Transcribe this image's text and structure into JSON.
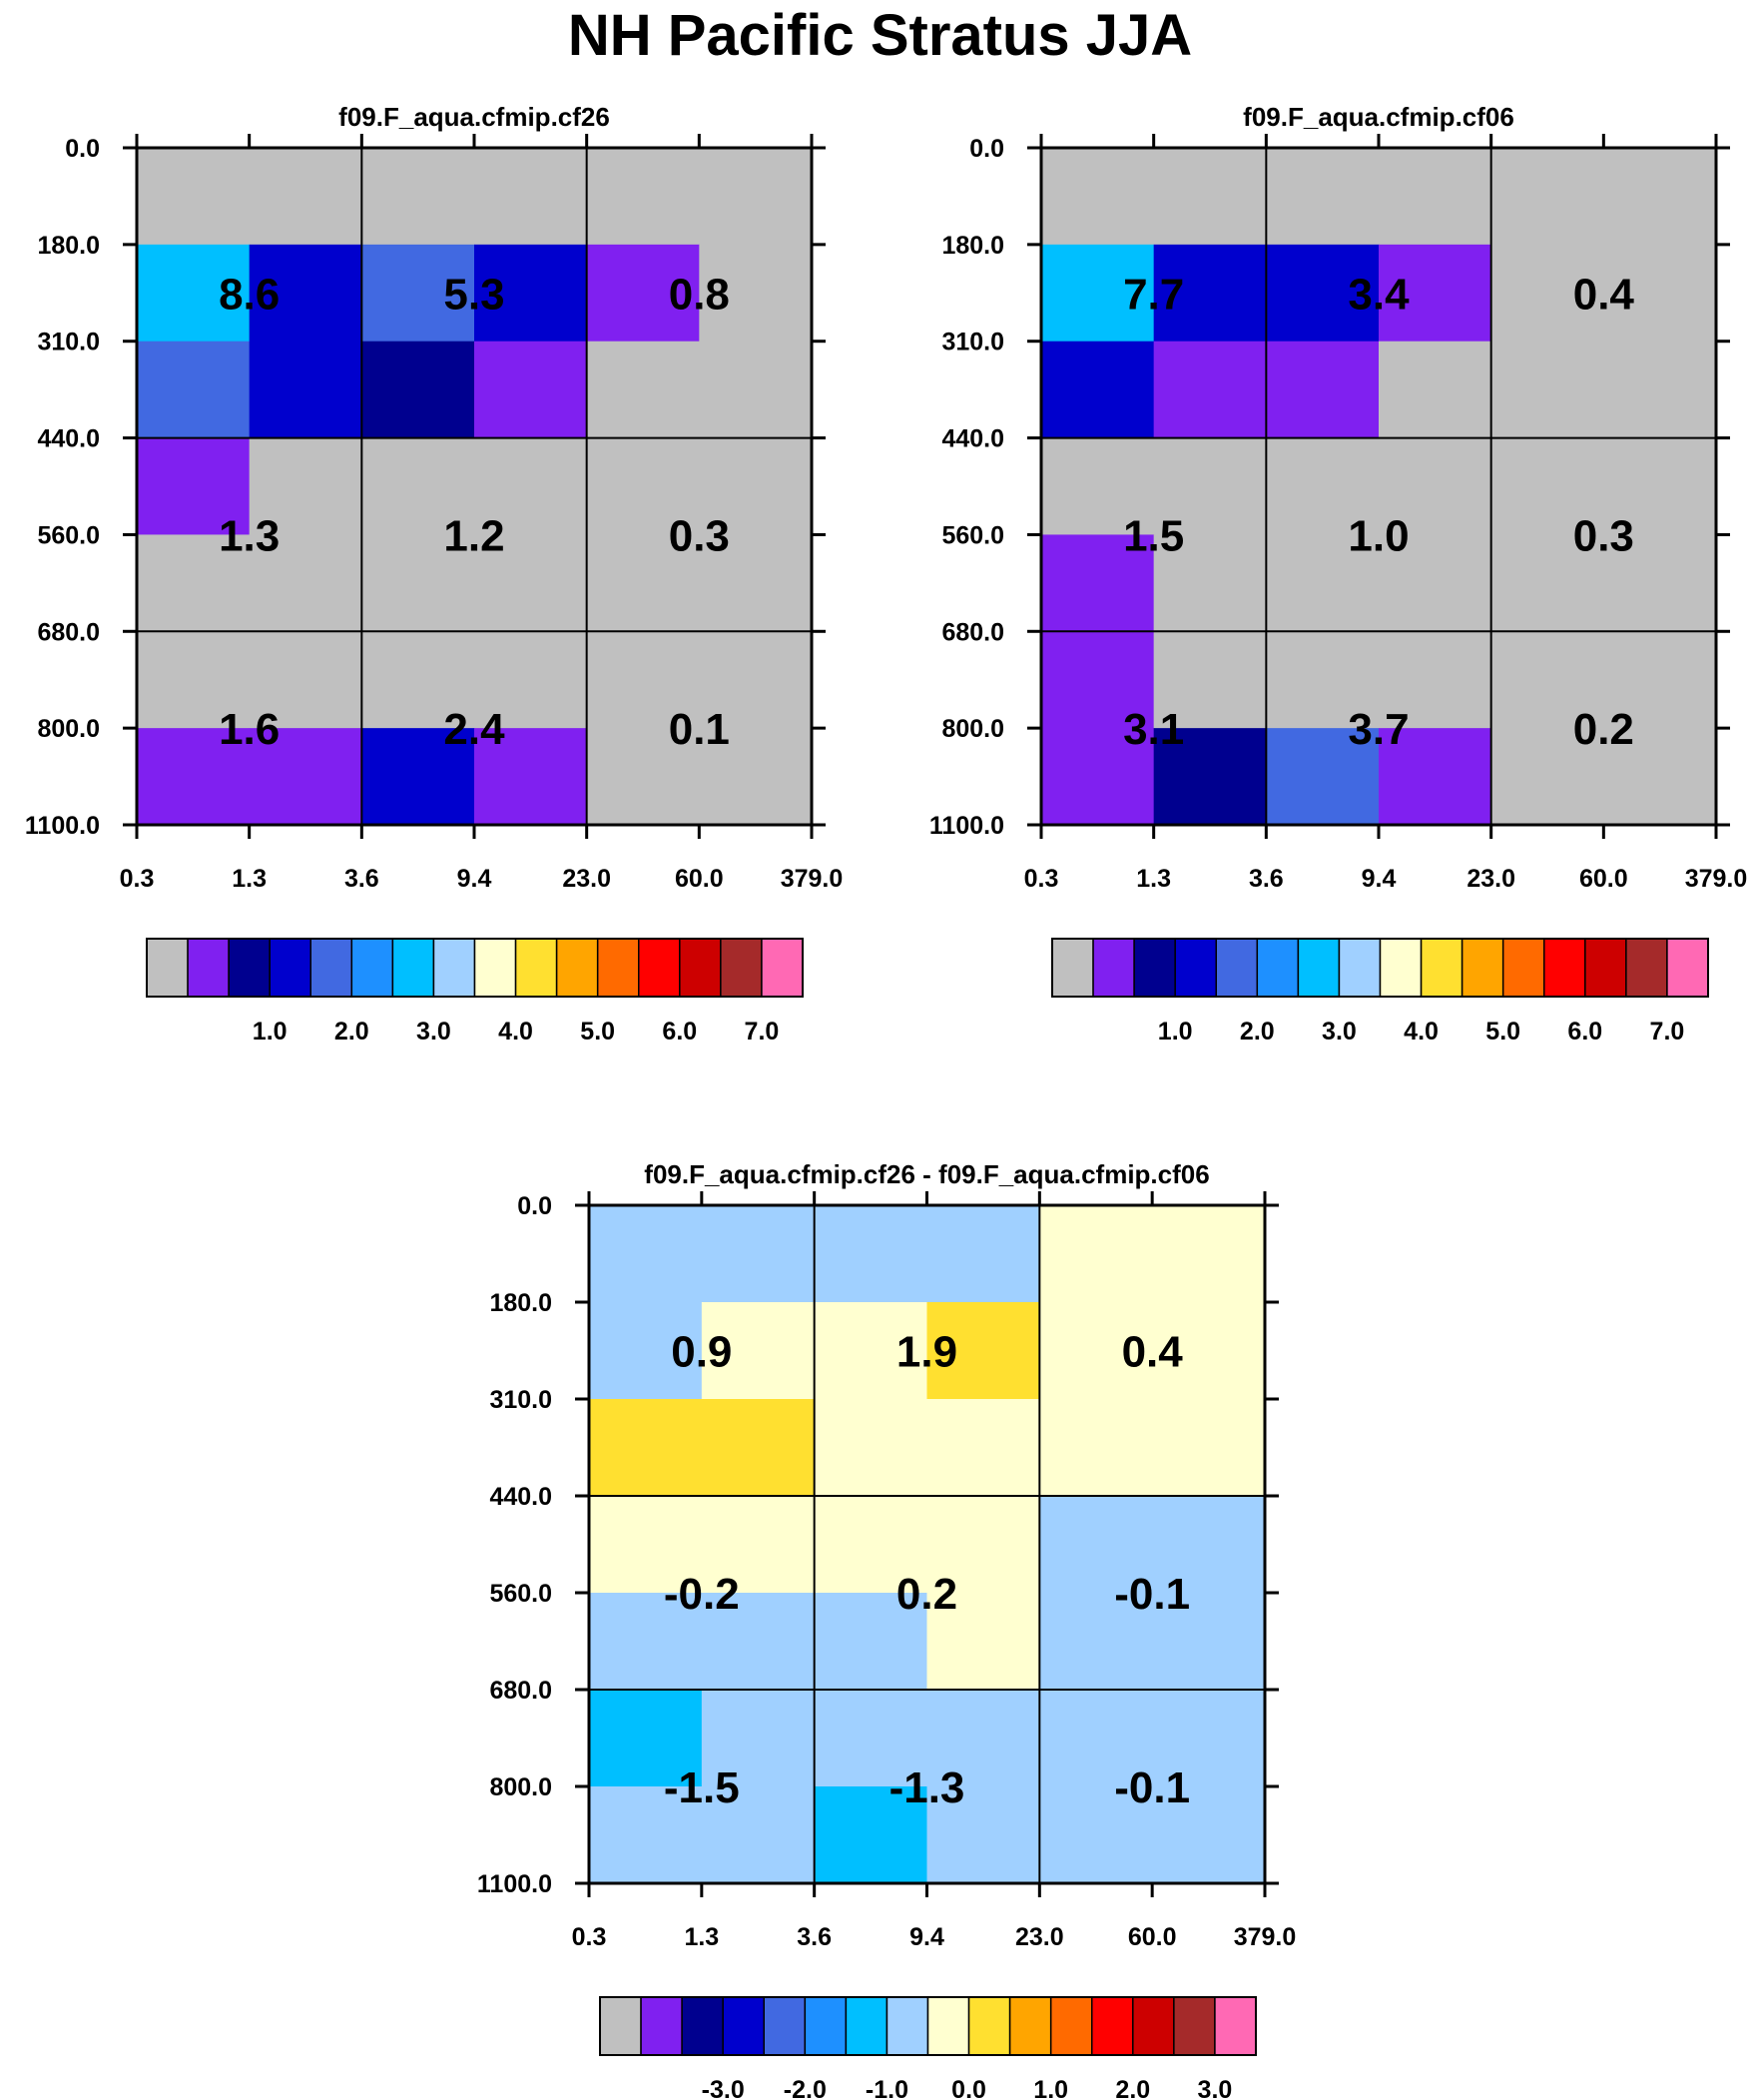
{
  "figure": {
    "title": "NH Pacific Stratus JJA"
  },
  "colors": {
    "palette": [
      "#c0c0c0",
      "#8020f0",
      "#00008f",
      "#0000cd",
      "#4169e1",
      "#1e90ff",
      "#00bfff",
      "#a0d0ff",
      "#ffffd0",
      "#ffe030",
      "#ffa500",
      "#ff6a00",
      "#ff0000",
      "#cd0000",
      "#a52a2a",
      "#ff69b4"
    ],
    "grid_line": "#000000",
    "background": "#ffffff"
  },
  "chart_data": [
    {
      "type": "heatmap",
      "title": "f09.F_aqua.cfmip.cf26",
      "x_ticks": [
        "0.3",
        "1.3",
        "3.6",
        "9.4",
        "23.0",
        "60.0",
        "379.0"
      ],
      "y_ticks": [
        "0.0",
        "180.0",
        "310.0",
        "440.0",
        "560.0",
        "680.0",
        "800.0",
        "1100.0"
      ],
      "cell_colors": [
        [
          0,
          0,
          0,
          0,
          0,
          0
        ],
        [
          6,
          3,
          4,
          3,
          1,
          0
        ],
        [
          4,
          3,
          2,
          1,
          0,
          0
        ],
        [
          1,
          0,
          0,
          0,
          0,
          0
        ],
        [
          0,
          0,
          0,
          0,
          0,
          0
        ],
        [
          0,
          0,
          0,
          0,
          0,
          0
        ],
        [
          1,
          1,
          3,
          1,
          0,
          0
        ]
      ],
      "block_labels": [
        [
          "8.6",
          "5.3",
          "0.8"
        ],
        [
          "1.3",
          "1.2",
          "0.3"
        ],
        [
          "1.6",
          "2.4",
          "0.1"
        ]
      ],
      "colorbar_labels": [
        "1.0",
        "2.0",
        "3.0",
        "4.0",
        "5.0",
        "6.0",
        "7.0"
      ]
    },
    {
      "type": "heatmap",
      "title": "f09.F_aqua.cfmip.cf06",
      "x_ticks": [
        "0.3",
        "1.3",
        "3.6",
        "9.4",
        "23.0",
        "60.0",
        "379.0"
      ],
      "y_ticks": [
        "0.0",
        "180.0",
        "310.0",
        "440.0",
        "560.0",
        "680.0",
        "800.0",
        "1100.0"
      ],
      "cell_colors": [
        [
          0,
          0,
          0,
          0,
          0,
          0
        ],
        [
          6,
          3,
          3,
          1,
          0,
          0
        ],
        [
          3,
          1,
          1,
          0,
          0,
          0
        ],
        [
          0,
          0,
          0,
          0,
          0,
          0
        ],
        [
          1,
          0,
          0,
          0,
          0,
          0
        ],
        [
          1,
          0,
          0,
          0,
          0,
          0
        ],
        [
          1,
          2,
          4,
          1,
          0,
          0
        ]
      ],
      "block_labels": [
        [
          "7.7",
          "3.4",
          "0.4"
        ],
        [
          "1.5",
          "1.0",
          "0.3"
        ],
        [
          "3.1",
          "3.7",
          "0.2"
        ]
      ],
      "colorbar_labels": [
        "1.0",
        "2.0",
        "3.0",
        "4.0",
        "5.0",
        "6.0",
        "7.0"
      ]
    },
    {
      "type": "heatmap",
      "title": "f09.F_aqua.cfmip.cf26 - f09.F_aqua.cfmip.cf06",
      "x_ticks": [
        "0.3",
        "1.3",
        "3.6",
        "9.4",
        "23.0",
        "60.0",
        "379.0"
      ],
      "y_ticks": [
        "0.0",
        "180.0",
        "310.0",
        "440.0",
        "560.0",
        "680.0",
        "800.0",
        "1100.0"
      ],
      "cell_colors": [
        [
          7,
          7,
          7,
          7,
          8,
          8
        ],
        [
          7,
          8,
          8,
          9,
          8,
          8
        ],
        [
          9,
          9,
          8,
          8,
          8,
          8
        ],
        [
          8,
          8,
          8,
          8,
          7,
          7
        ],
        [
          7,
          7,
          7,
          8,
          7,
          7
        ],
        [
          6,
          7,
          7,
          7,
          7,
          7
        ],
        [
          7,
          7,
          6,
          7,
          7,
          7
        ]
      ],
      "block_labels": [
        [
          "0.9",
          "1.9",
          "0.4"
        ],
        [
          "-0.2",
          "0.2",
          "-0.1"
        ],
        [
          "-1.5",
          "-1.3",
          "-0.1"
        ]
      ],
      "colorbar_labels": [
        "-3.0",
        "-2.0",
        "-1.0",
        "0.0",
        "1.0",
        "2.0",
        "3.0"
      ]
    }
  ]
}
